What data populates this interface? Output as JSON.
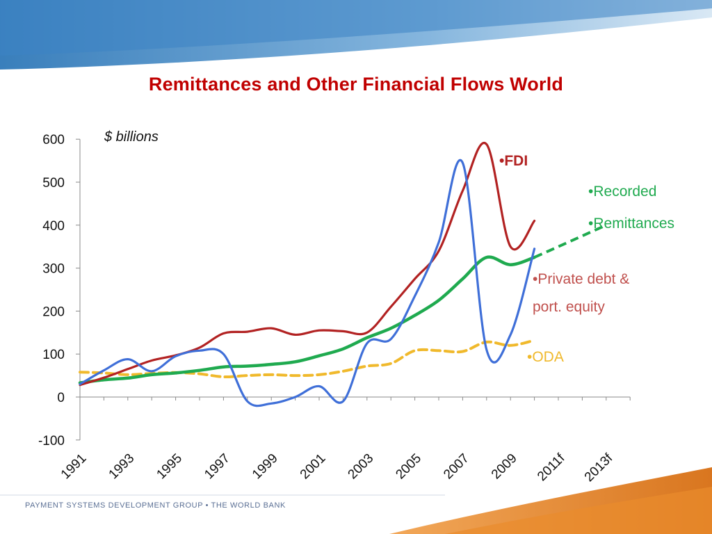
{
  "slide": {
    "title": "Remittances and Other Financial Flows World",
    "unit_label": "$ billions",
    "footer": "PAYMENT SYSTEMS DEVELOPMENT GROUP • THE WORLD BANK"
  },
  "chart_data": {
    "type": "line",
    "title": "Remittances and Other Financial Flows World",
    "ylabel": "$ billions",
    "ylim": [
      -100,
      600
    ],
    "yticks": [
      -100,
      0,
      100,
      200,
      300,
      400,
      500,
      600
    ],
    "x_categories": [
      "1991",
      "1992",
      "1993",
      "1994",
      "1995",
      "1996",
      "1997",
      "1998",
      "1999",
      "2000",
      "2001",
      "2002",
      "2003",
      "2004",
      "2005",
      "2006",
      "2007",
      "2008",
      "2009",
      "2010",
      "2011f",
      "2012f",
      "2013f"
    ],
    "x_tick_labels": [
      "1991",
      "1993",
      "1995",
      "1997",
      "1999",
      "2001",
      "2003",
      "2005",
      "2007",
      "2009",
      "2011f",
      "2013f"
    ],
    "grid": false,
    "series": [
      {
        "name": "•FDI",
        "color": "#b22222",
        "style": "solid",
        "values": [
          28,
          45,
          65,
          85,
          97,
          115,
          148,
          152,
          160,
          145,
          155,
          153,
          150,
          210,
          275,
          340,
          480,
          588,
          350,
          410,
          null,
          null,
          null
        ]
      },
      {
        "name": "•Recorded •Remittances",
        "color": "#1faa4f",
        "style": "solid+dashed-forecast",
        "values": [
          33,
          40,
          44,
          52,
          56,
          62,
          70,
          72,
          76,
          82,
          96,
          112,
          138,
          160,
          190,
          225,
          275,
          325,
          308,
          325,
          350,
          375,
          400
        ]
      },
      {
        "name": "•Private debt & port. equity",
        "color": "#3f6fd8",
        "style": "solid",
        "values": [
          30,
          62,
          88,
          60,
          95,
          108,
          100,
          -10,
          -15,
          0,
          25,
          -10,
          125,
          135,
          235,
          360,
          545,
          110,
          145,
          345,
          null,
          null,
          null
        ]
      },
      {
        "name": "•ODA",
        "color": "#f0b92c",
        "style": "dashed",
        "values": [
          58,
          56,
          52,
          55,
          57,
          54,
          47,
          50,
          52,
          50,
          52,
          60,
          72,
          78,
          108,
          108,
          106,
          128,
          120,
          132,
          null,
          null,
          null
        ]
      }
    ],
    "series_labels": {
      "fdi": "•FDI",
      "remit_1": "•Recorded",
      "remit_2": "•Remittances",
      "private_1": "•Private debt &",
      "private_2": "port. equity",
      "oda": "•ODA"
    }
  }
}
